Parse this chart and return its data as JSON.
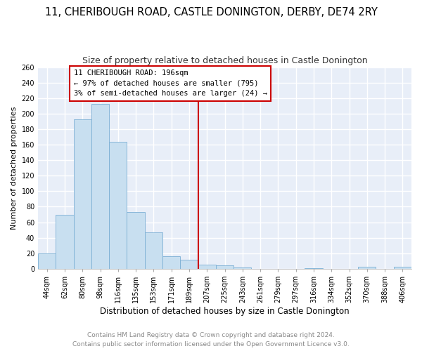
{
  "title": "11, CHERIBOUGH ROAD, CASTLE DONINGTON, DERBY, DE74 2RY",
  "subtitle": "Size of property relative to detached houses in Castle Donington",
  "xlabel": "Distribution of detached houses by size in Castle Donington",
  "ylabel": "Number of detached properties",
  "bar_color": "#c8dff0",
  "bar_edge_color": "#7bafd4",
  "fig_bg_color": "#ffffff",
  "plot_bg_color": "#e8eef8",
  "grid_color": "#ffffff",
  "categories": [
    "44sqm",
    "62sqm",
    "80sqm",
    "98sqm",
    "116sqm",
    "135sqm",
    "153sqm",
    "171sqm",
    "189sqm",
    "207sqm",
    "225sqm",
    "243sqm",
    "261sqm",
    "279sqm",
    "297sqm",
    "316sqm",
    "334sqm",
    "352sqm",
    "370sqm",
    "388sqm",
    "406sqm"
  ],
  "values": [
    20,
    70,
    193,
    213,
    164,
    73,
    47,
    16,
    12,
    5,
    4,
    2,
    0,
    0,
    0,
    1,
    0,
    0,
    3,
    0,
    3
  ],
  "vline_x": 8.5,
  "vline_color": "#cc0000",
  "annotation_title": "11 CHERIBOUGH ROAD: 196sqm",
  "annotation_line1": "← 97% of detached houses are smaller (795)",
  "annotation_line2": "3% of semi-detached houses are larger (24) →",
  "annotation_box_color": "white",
  "annotation_border_color": "#cc0000",
  "footer1": "Contains HM Land Registry data © Crown copyright and database right 2024.",
  "footer2": "Contains public sector information licensed under the Open Government Licence v3.0.",
  "ylim": [
    0,
    260
  ],
  "yticks": [
    0,
    20,
    40,
    60,
    80,
    100,
    120,
    140,
    160,
    180,
    200,
    220,
    240,
    260
  ],
  "title_fontsize": 10.5,
  "subtitle_fontsize": 9,
  "xlabel_fontsize": 8.5,
  "ylabel_fontsize": 8,
  "tick_fontsize": 7,
  "annotation_fontsize": 7.5,
  "footer_fontsize": 6.5
}
